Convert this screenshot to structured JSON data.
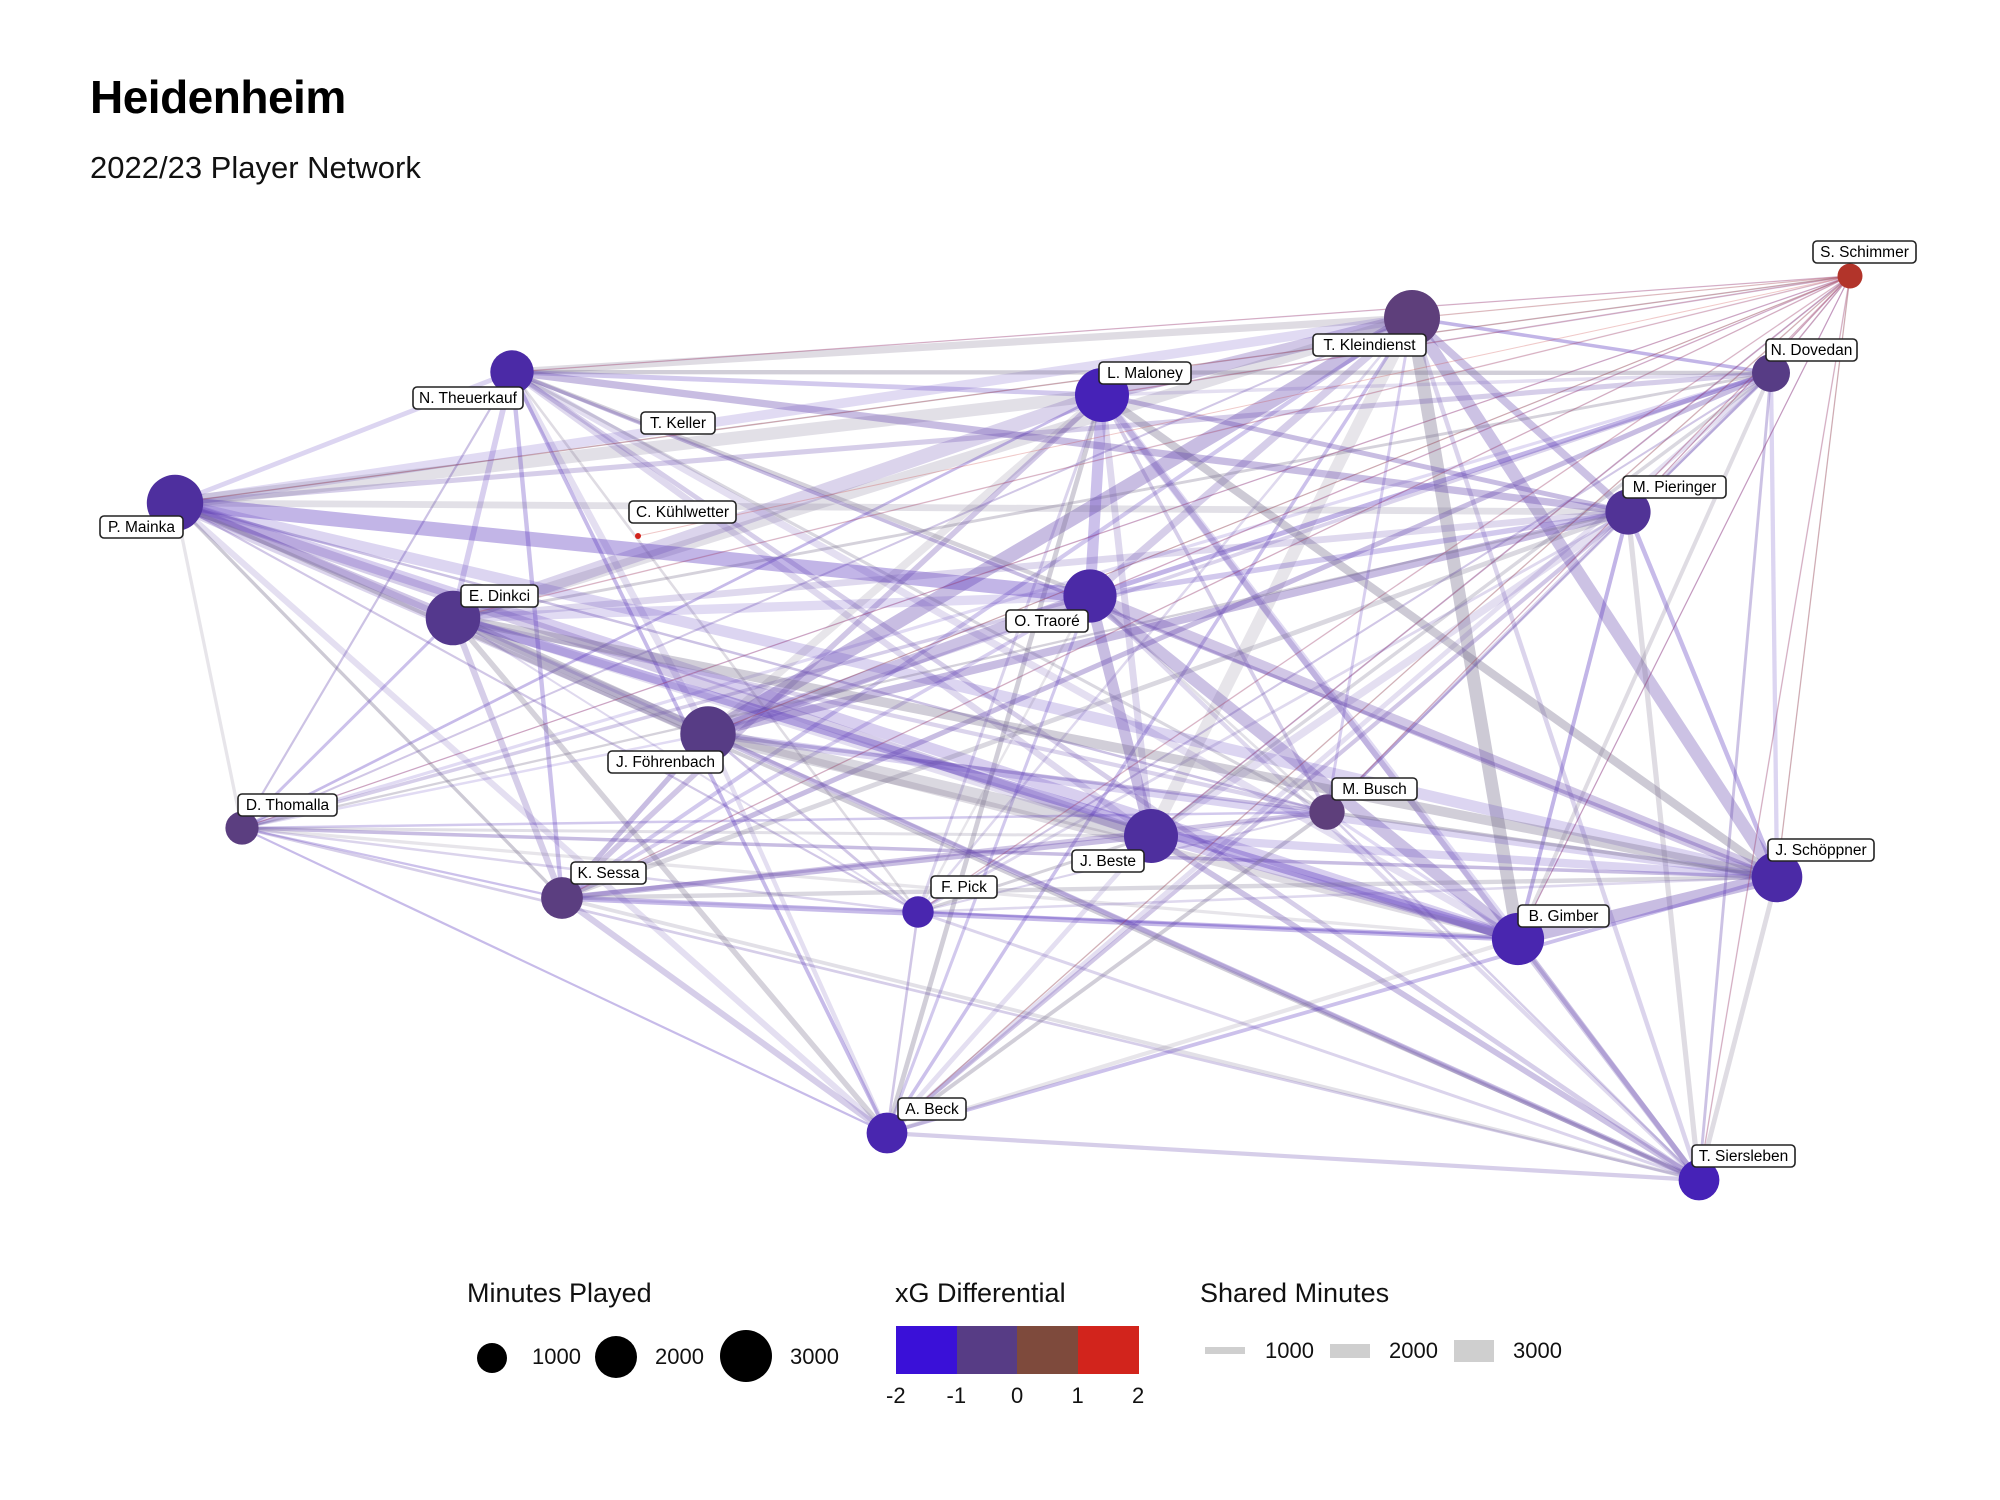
{
  "title": "Heidenheim",
  "subtitle": "2022/23 Player Network",
  "network": {
    "nodes": [
      {
        "name": "S. Schimmer",
        "minutes": 150,
        "xg": 1.0
      },
      {
        "name": "T. Kleindienst",
        "minutes": 3000,
        "xg": -0.8
      },
      {
        "name": "N. Dovedan",
        "minutes": 900,
        "xg": -1.0
      },
      {
        "name": "L. Maloney",
        "minutes": 2700,
        "xg": -1.6
      },
      {
        "name": "N. Theuerkauf",
        "minutes": 1400,
        "xg": -1.4
      },
      {
        "name": "T. Keller",
        "minutes": 0,
        "xg": 0
      },
      {
        "name": "P. Mainka",
        "minutes": 3050,
        "xg": -1.3
      },
      {
        "name": "C. Kühlwetter",
        "minutes": 20,
        "xg": 2.0
      },
      {
        "name": "M. Pieringer",
        "minutes": 1600,
        "xg": -1.2
      },
      {
        "name": "O. Traoré",
        "minutes": 2600,
        "xg": -1.4
      },
      {
        "name": "E. Dinkci",
        "minutes": 2800,
        "xg": -1.1
      },
      {
        "name": "J. Föhrenbach",
        "minutes": 2900,
        "xg": -1.0
      },
      {
        "name": "D. Thomalla",
        "minutes": 550,
        "xg": -0.9
      },
      {
        "name": "M. Busch",
        "minutes": 700,
        "xg": -0.8
      },
      {
        "name": "J. Beste",
        "minutes": 2700,
        "xg": -1.3
      },
      {
        "name": "J. Schöppner",
        "minutes": 2250,
        "xg": -1.4
      },
      {
        "name": "K. Sessa",
        "minutes": 1250,
        "xg": -0.9
      },
      {
        "name": "F. Pick",
        "minutes": 450,
        "xg": -1.5
      },
      {
        "name": "B. Gimber",
        "minutes": 2450,
        "xg": -1.5
      },
      {
        "name": "A. Beck",
        "minutes": 1150,
        "xg": -1.5
      },
      {
        "name": "T. Siersleben",
        "minutes": 1150,
        "xg": -1.6
      }
    ]
  },
  "legend": {
    "minutes": {
      "title": "Minutes Played",
      "items": [
        {
          "value": 1000,
          "label": "1000"
        },
        {
          "value": 2000,
          "label": "2000"
        },
        {
          "value": 3000,
          "label": "3000"
        }
      ]
    },
    "xg": {
      "title": "xG Differential",
      "colors": [
        "#3a10d8",
        "#573c85",
        "#7e4a3c",
        "#d2241c"
      ],
      "ticks": [
        "-2",
        "-1",
        "0",
        "1",
        "2"
      ]
    },
    "shared": {
      "title": "Shared Minutes",
      "items": [
        {
          "value": 1000,
          "label": "1000"
        },
        {
          "value": 2000,
          "label": "2000"
        },
        {
          "value": 3000,
          "label": "3000"
        }
      ]
    }
  }
}
